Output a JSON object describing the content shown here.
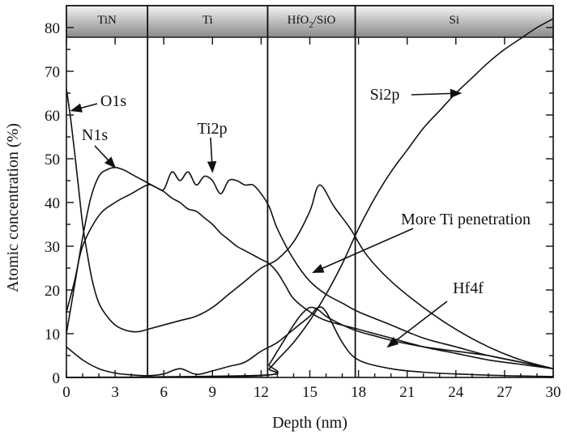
{
  "chart_data": {
    "type": "line",
    "title": "",
    "xlabel": "Depth (nm)",
    "ylabel": "Atomic concentration (%)",
    "xlim": [
      0,
      30
    ],
    "ylim": [
      0,
      85
    ],
    "xticks": [
      0,
      3,
      6,
      9,
      12,
      15,
      18,
      21,
      24,
      27,
      30
    ],
    "yticks": [
      0,
      10,
      20,
      30,
      40,
      50,
      60,
      70,
      80
    ],
    "grid": false,
    "layers": [
      {
        "label": "TiN",
        "start": 0,
        "end": 5
      },
      {
        "label": "Ti",
        "start": 5,
        "end": 12.4
      },
      {
        "label": "HfO",
        "sub": "2",
        "label_rest": "/SiO",
        "start": 12.4,
        "end": 17.8
      },
      {
        "label": "Si",
        "start": 17.8,
        "end": 30
      }
    ],
    "series": [
      {
        "name": "O1s",
        "x": [
          0,
          0.3,
          0.7,
          1.0,
          1.3,
          1.6,
          2.0,
          2.5,
          3.0,
          3.5,
          4.0,
          4.5,
          5.0,
          6.0,
          7.0,
          8.0,
          9.0,
          10.0,
          11.0,
          12.0,
          13.0,
          14.0,
          15.0,
          15.6,
          16.5,
          17.5,
          18.5,
          20.0,
          22.0,
          24.0,
          26.0,
          28.0,
          30.0
        ],
        "y": [
          66,
          58,
          45,
          35,
          28,
          22,
          17,
          14,
          12,
          11,
          10.5,
          10.5,
          11,
          12,
          13,
          14,
          16,
          19,
          22,
          25,
          27,
          31,
          38,
          44,
          39,
          34,
          28,
          22,
          16,
          11,
          7,
          4,
          2
        ]
      },
      {
        "name": "N1s",
        "x": [
          0,
          0.5,
          1.0,
          1.5,
          2.0,
          2.5,
          3.0,
          3.5,
          4.0,
          4.5,
          5.0,
          5.5,
          6.0,
          6.5,
          7.0,
          7.5,
          8.0,
          8.5,
          9.0,
          9.5,
          10.0,
          10.5,
          11.0,
          11.5,
          12.0,
          12.5,
          13.0,
          13.5,
          14.0,
          15.0,
          16.0,
          18.0,
          20.0,
          22.0,
          24.0,
          26.0,
          28.0,
          30.0
        ],
        "y": [
          10,
          21,
          32,
          41,
          46,
          47.5,
          48,
          47.5,
          46.5,
          45.5,
          44.5,
          43.5,
          42.5,
          41,
          40,
          38.5,
          38,
          36.5,
          35,
          33,
          31.5,
          30,
          29,
          28,
          27,
          26,
          24,
          21,
          18,
          15,
          13,
          11,
          9,
          7,
          5.5,
          4,
          3,
          2
        ]
      },
      {
        "name": "Ti2p",
        "x": [
          0,
          0.5,
          1.0,
          2.0,
          3.0,
          4.0,
          5.0,
          5.5,
          6.0,
          6.5,
          7.0,
          7.5,
          8.0,
          8.5,
          9.0,
          9.5,
          10.0,
          10.5,
          11.0,
          11.5,
          12.0,
          12.5,
          13.0,
          14.0,
          15.0,
          16.0,
          17.0,
          18.0,
          20.0,
          22.0,
          24.0,
          26.0,
          28.0,
          30.0
        ],
        "y": [
          15,
          22,
          30,
          37,
          40,
          42,
          44,
          43.5,
          43,
          47,
          45,
          47,
          44,
          46,
          45,
          42,
          45,
          45,
          44,
          44,
          42,
          39,
          34,
          27,
          22,
          19,
          17,
          15,
          12,
          9,
          7,
          5,
          3.5,
          2
        ]
      },
      {
        "name": "Hf4f",
        "x": [
          0,
          12.0,
          12.5,
          13.0,
          13.5,
          14.0,
          14.5,
          15.0,
          15.5,
          16.0,
          17.0,
          18.0,
          19.0,
          20.0,
          22.0,
          24.0,
          26.0,
          28.0,
          30.0
        ],
        "y": [
          0,
          0.4,
          3,
          6,
          9,
          12,
          14.5,
          16,
          15.5,
          14,
          12,
          10.5,
          9.5,
          8.5,
          7,
          6,
          5,
          3.5,
          2
        ]
      },
      {
        "name": "Si2p",
        "x": [
          0,
          12.0,
          12.5,
          13.0,
          14.0,
          15.0,
          16.0,
          17.0,
          18.0,
          19.0,
          20.0,
          21.0,
          22.0,
          23.0,
          24.0,
          25.0,
          26.0,
          27.0,
          28.0,
          29.0,
          30.0
        ],
        "y": [
          0,
          0.5,
          2,
          4,
          8,
          13,
          19,
          26,
          34,
          41,
          47,
          52,
          57,
          61,
          65,
          68.5,
          72,
          75,
          77.5,
          80,
          82
        ]
      },
      {
        "name": "",
        "x": [
          0,
          1,
          2,
          3,
          4,
          5,
          6,
          7,
          8,
          9,
          10,
          11,
          12,
          13,
          14,
          15,
          15.5,
          16,
          17,
          18,
          20,
          22,
          24,
          27,
          30
        ],
        "y": [
          7,
          4,
          2,
          1,
          0.6,
          0.4,
          0.8,
          2,
          0.7,
          1.5,
          2.5,
          3.5,
          6,
          8,
          11,
          14,
          16,
          15,
          8,
          4,
          2,
          1.2,
          0.8,
          0.4,
          0.2
        ]
      }
    ],
    "annotations": [
      {
        "text": "O1s",
        "points_to": [
          0.3,
          61
        ]
      },
      {
        "text": "N1s",
        "points_to": [
          3.0,
          48
        ]
      },
      {
        "text": "Ti2p",
        "points_to": [
          9.0,
          47
        ]
      },
      {
        "text": "Si2p",
        "points_to": [
          24.3,
          65
        ]
      },
      {
        "text": "More Ti penetration",
        "points_to": [
          15.2,
          24
        ]
      },
      {
        "text": "Hf4f",
        "points_to": [
          19.8,
          7
        ]
      }
    ]
  }
}
